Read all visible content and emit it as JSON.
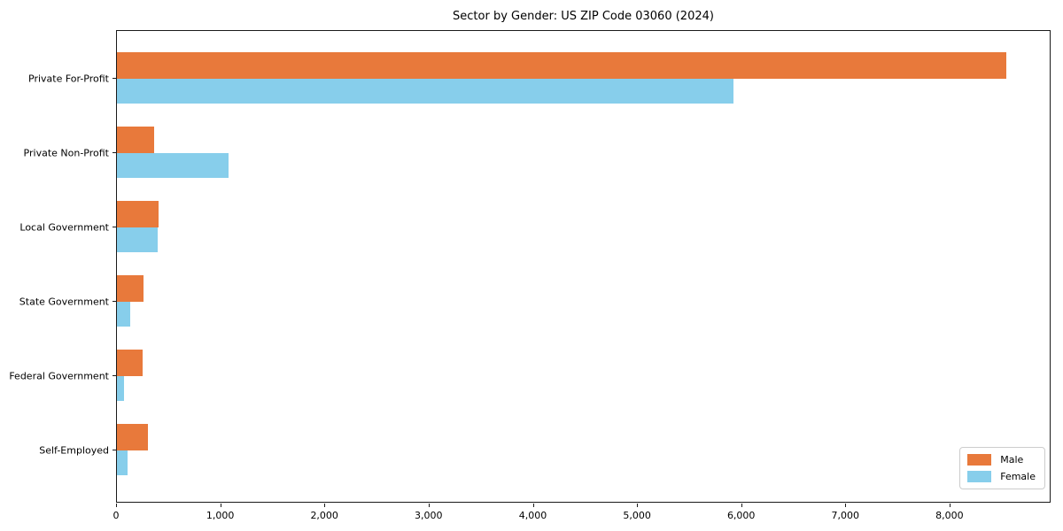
{
  "chart_data": {
    "type": "bar",
    "orientation": "horizontal",
    "title": "Sector by Gender: US ZIP Code 03060 (2024)",
    "categories": [
      "Private For-Profit",
      "Private Non-Profit",
      "Local Government",
      "State Government",
      "Federal Government",
      "Self-Employed"
    ],
    "series": [
      {
        "name": "Male",
        "color": "#e8793b",
        "values": [
          8540,
          355,
          400,
          255,
          245,
          300
        ]
      },
      {
        "name": "Female",
        "color": "#87ceeb",
        "values": [
          5920,
          1070,
          390,
          130,
          70,
          105
        ]
      }
    ],
    "xlabel": "",
    "ylabel": "",
    "xlim": [
      0,
      8970
    ],
    "xticks": [
      0,
      1000,
      2000,
      3000,
      4000,
      5000,
      6000,
      7000,
      8000
    ],
    "xtick_labels": [
      "0",
      "1,000",
      "2,000",
      "3,000",
      "4,000",
      "5,000",
      "6,000",
      "7,000",
      "8,000"
    ],
    "grid": false,
    "legend_position": "lower right",
    "legend_entries": [
      {
        "label": "Male",
        "color": "#e8793b"
      },
      {
        "label": "Female",
        "color": "#87ceeb"
      }
    ]
  }
}
